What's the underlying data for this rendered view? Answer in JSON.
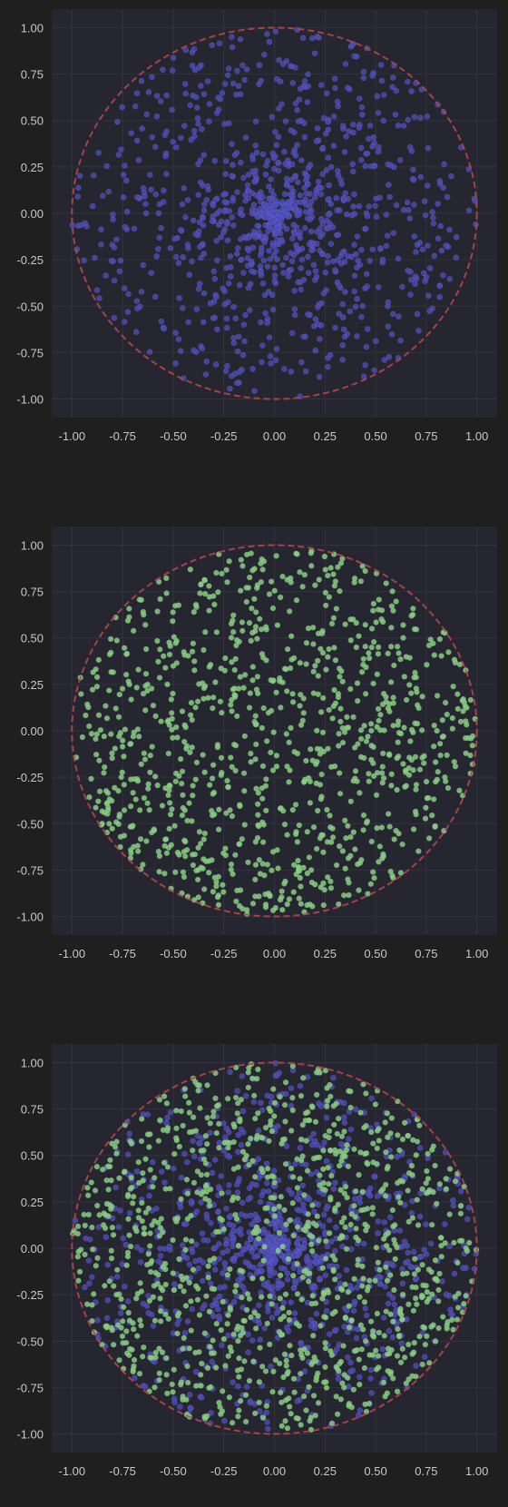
{
  "figure": {
    "background": "#1f1f1f",
    "axes_background": "#262630",
    "grid_color": "#33333d",
    "tick_color": "#c8c8c8"
  },
  "chart_data": [
    {
      "type": "scatter",
      "title": "",
      "xlabel": "",
      "ylabel": "",
      "xlim": [
        -1.1,
        1.1
      ],
      "ylim": [
        -1.1,
        1.1
      ],
      "xticks": [
        "-1.00",
        "-0.75",
        "-0.50",
        "-0.25",
        "0.00",
        "0.25",
        "0.50",
        "0.75",
        "1.00"
      ],
      "yticks": [
        "1.00",
        "0.75",
        "0.50",
        "0.25",
        "0.00",
        "-0.25",
        "-0.50",
        "-0.75",
        "-1.00"
      ],
      "grid": true,
      "reference_circle": {
        "radius": 1.0,
        "style": "dashed",
        "color": "#b5464a"
      },
      "series": [
        {
          "distribution": "radius uniform in [0,1], angle uniform (concentrated near center)",
          "n": 1000,
          "color": "#4a49b8",
          "points": [
            [
              -0.6,
              0.2
            ],
            [
              0.1,
              0.05
            ],
            [
              0.3,
              -0.4
            ],
            [
              -0.2,
              0.7
            ],
            [
              0.8,
              0.3
            ],
            [
              0.05,
              0.1
            ],
            [
              -0.05,
              -0.05
            ],
            [
              0.4,
              0.6
            ],
            [
              -0.7,
              -0.5
            ],
            [
              0.2,
              -0.9
            ]
          ]
        }
      ]
    },
    {
      "type": "scatter",
      "title": "",
      "xlabel": "",
      "ylabel": "",
      "xlim": [
        -1.1,
        1.1
      ],
      "ylim": [
        -1.1,
        1.1
      ],
      "xticks": [
        "-1.00",
        "-0.75",
        "-0.50",
        "-0.25",
        "0.00",
        "0.25",
        "0.50",
        "0.75",
        "1.00"
      ],
      "yticks": [
        "1.00",
        "0.75",
        "0.50",
        "0.25",
        "0.00",
        "-0.25",
        "-0.50",
        "-0.75",
        "-1.00"
      ],
      "grid": true,
      "reference_circle": {
        "radius": 1.0,
        "style": "dashed",
        "color": "#b5464a"
      },
      "series": [
        {
          "distribution": "radius sqrt-uniform in [0,1], angle uniform (uniform over disk)",
          "n": 1000,
          "color": "#86d07a",
          "points": [
            [
              -0.6,
              0.4
            ],
            [
              0.5,
              -0.3
            ],
            [
              0.2,
              0.8
            ],
            [
              -0.8,
              -0.3
            ],
            [
              0.7,
              0.5
            ],
            [
              -0.3,
              -0.7
            ],
            [
              0.9,
              -0.1
            ],
            [
              -0.1,
              0.3
            ],
            [
              0.4,
              0.2
            ],
            [
              -0.5,
              -0.2
            ]
          ]
        }
      ]
    },
    {
      "type": "scatter",
      "title": "",
      "xlabel": "",
      "ylabel": "",
      "xlim": [
        -1.1,
        1.1
      ],
      "ylim": [
        -1.1,
        1.1
      ],
      "xticks": [
        "-1.00",
        "-0.75",
        "-0.50",
        "-0.25",
        "0.00",
        "0.25",
        "0.50",
        "0.75",
        "1.00"
      ],
      "yticks": [
        "1.00",
        "0.75",
        "0.50",
        "0.25",
        "0.00",
        "-0.25",
        "-0.50",
        "-0.75",
        "-1.00"
      ],
      "grid": true,
      "reference_circle": {
        "radius": 1.0,
        "style": "dashed",
        "color": "#b5464a"
      },
      "series": [
        {
          "distribution": "radius uniform in [0,1], angle uniform (concentrated near center)",
          "n": 1000,
          "color": "#4a49b8",
          "points": [
            [
              -0.6,
              0.2
            ],
            [
              0.1,
              0.05
            ],
            [
              0.3,
              -0.4
            ],
            [
              -0.2,
              0.7
            ],
            [
              0.8,
              0.3
            ]
          ]
        },
        {
          "distribution": "radius sqrt-uniform in [0,1], angle uniform (uniform over disk)",
          "n": 1000,
          "color": "#86d07a",
          "points": [
            [
              -0.6,
              0.4
            ],
            [
              0.5,
              -0.3
            ],
            [
              0.2,
              0.8
            ],
            [
              -0.8,
              -0.3
            ],
            [
              0.7,
              0.5
            ]
          ]
        }
      ]
    }
  ]
}
